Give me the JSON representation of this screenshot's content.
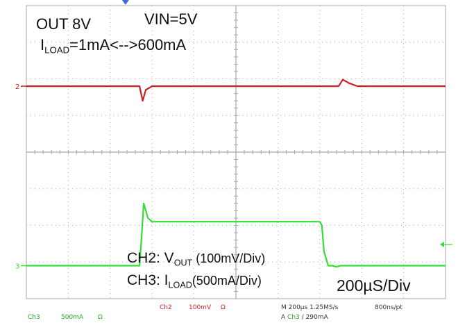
{
  "annotations": {
    "out_label": "OUT 8V",
    "vin_label": "VIN=5V",
    "iload_prefix": "I",
    "iload_sub": "LOAD",
    "iload_rest": "=1mA<-->600mA",
    "ch2_prefix": "CH2:  V",
    "ch2_sub": "OUT",
    "ch2_rest": " (100mV/Div)",
    "ch3_prefix": "CH3:  I",
    "ch3_sub": "LOAD",
    "ch3_rest": "(500mA/Div)",
    "timebase": "200µS/Div"
  },
  "markers": {
    "ch3_ground": "3",
    "ch2_ground": "2"
  },
  "status_bar": {
    "ch3_name": "Ch3",
    "ch3_scale": "500mA",
    "ch3_coupling": "Ω",
    "ch2_name": "Ch2",
    "ch2_scale": "100mV",
    "ch2_coupling": "Ω",
    "horizontal": "M 200µs 1.25MS/s",
    "record": "800ns/pt",
    "trigger_prefix": "A",
    "trigger_channel": "Ch3",
    "trigger_slope": "/",
    "trigger_level": "290mA"
  },
  "colors": {
    "ch2": "#cc1f1f",
    "ch3": "#33dd33",
    "grid": "#a8a8a8",
    "trigger_marker": "#3a6fd8"
  },
  "chart_data": {
    "type": "line",
    "title": "",
    "xlabel": "",
    "ylabel": "",
    "x_unit": "µs",
    "x_per_div": 200,
    "x_divisions": 10,
    "xlim": [
      0,
      2000
    ],
    "y_divisions": 8,
    "grid": true,
    "series": [
      {
        "name": "CH2",
        "unit": "mV (AC, relative)",
        "volts_per_div": 100,
        "x": [
          0,
          500,
          540,
          555,
          570,
          600,
          700,
          1000,
          1400,
          1490,
          1510,
          1540,
          1580,
          1700,
          2000
        ],
        "y": [
          0,
          0,
          0,
          -40,
          -10,
          0,
          0,
          0,
          0,
          0,
          18,
          8,
          0,
          0,
          0
        ]
      },
      {
        "name": "CH3",
        "unit": "mA",
        "amps_per_div": 500,
        "x": [
          0,
          500,
          540,
          550,
          560,
          580,
          600,
          700,
          1000,
          1300,
          1400,
          1410,
          1420,
          1440,
          1460,
          1480,
          1500,
          1600,
          2000
        ],
        "y": [
          0,
          0,
          0,
          400,
          850,
          650,
          600,
          600,
          600,
          600,
          600,
          550,
          200,
          0,
          0,
          -15,
          0,
          0,
          0
        ]
      }
    ]
  }
}
